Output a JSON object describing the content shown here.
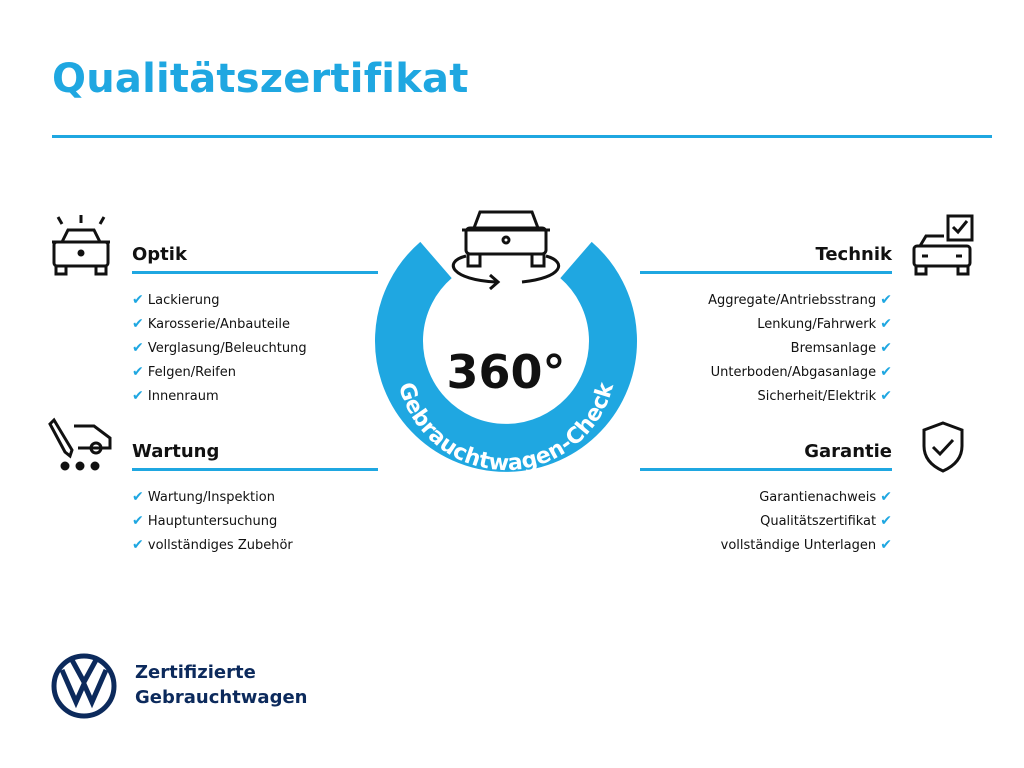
{
  "title": "Qualitätszertifikat",
  "center": {
    "number": "360°",
    "ring_text": "Gebrauchtwagen-Check"
  },
  "sections": {
    "optik": {
      "heading": "Optik",
      "items": [
        "Lackierung",
        "Karosserie/Anbauteile",
        "Verglasung/Beleuchtung",
        "Felgen/Reifen",
        "Innenraum"
      ]
    },
    "wartung": {
      "heading": "Wartung",
      "items": [
        "Wartung/Inspektion",
        "Hauptuntersuchung",
        "vollständiges Zubehör"
      ]
    },
    "technik": {
      "heading": "Technik",
      "items": [
        "Aggregate/Antriebsstrang",
        "Lenkung/Fahrwerk",
        "Bremsanlage",
        "Unterboden/Abgasanlage",
        "Sicherheit/Elektrik"
      ]
    },
    "garantie": {
      "heading": "Garantie",
      "items": [
        "Garantienachweis",
        "Qualitätszertifikat",
        "vollständige Unterlagen"
      ]
    }
  },
  "check_glyph": "✔",
  "footer": {
    "line1": "Zertifizierte",
    "line2": "Gebrauchtwagen"
  },
  "colors": {
    "accent": "#1fa7e1",
    "brand": "#0c2a5c"
  }
}
